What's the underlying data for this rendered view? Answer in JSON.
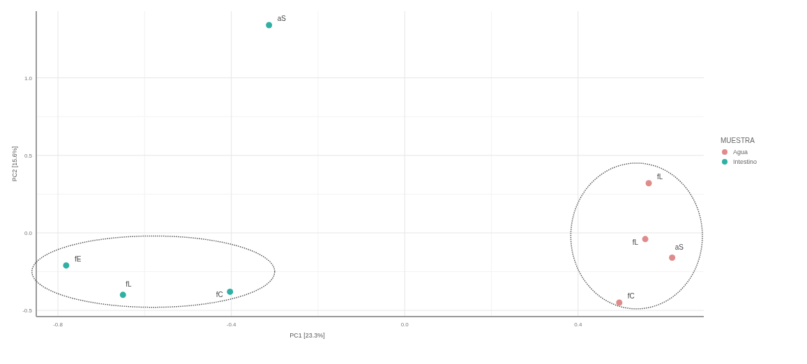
{
  "chart_data": {
    "type": "scatter",
    "xlabel": "PC1 [23.3%]",
    "ylabel": "PC2 [15.6%]",
    "legend_title": "MUESTRA",
    "legend": "right",
    "grid": true,
    "marker": "circle",
    "xlim": [
      -0.85,
      0.69
    ],
    "ylim": [
      -0.54,
      1.43
    ],
    "xticks": [
      -0.8,
      -0.4,
      {
        "value": 0,
        "label": "0.0"
      },
      0.4
    ],
    "yticks": [
      -0.5,
      {
        "value": 0,
        "label": "0.0"
      },
      0.5,
      {
        "value": 1,
        "label": "1.0"
      }
    ],
    "series": [
      {
        "name": "Agua",
        "color": "#e08b8b",
        "x": [
          0.563,
          0.555,
          0.617,
          0.495
        ],
        "values": [
          0.32,
          -0.04,
          -0.16,
          -0.45
        ]
      },
      {
        "name": "Intestino",
        "color": "#2fb0a4",
        "x": [
          -0.313,
          -0.781,
          -0.65,
          -0.403
        ],
        "values": [
          1.34,
          -0.21,
          -0.4,
          -0.38
        ]
      }
    ],
    "annotations": [
      {
        "text": "fL",
        "x": 0.563,
        "y": 0.32
      },
      {
        "text": "fL",
        "x": 0.555,
        "y": -0.04
      },
      {
        "text": "aS",
        "x": 0.617,
        "y": -0.16
      },
      {
        "text": "fC",
        "x": 0.495,
        "y": -0.45
      },
      {
        "text": "aS",
        "x": -0.313,
        "y": 1.34
      },
      {
        "text": "fE",
        "x": -0.781,
        "y": -0.21
      },
      {
        "text": "fL",
        "x": -0.65,
        "y": -0.4
      },
      {
        "text": "fC",
        "x": -0.403,
        "y": -0.38
      }
    ]
  }
}
